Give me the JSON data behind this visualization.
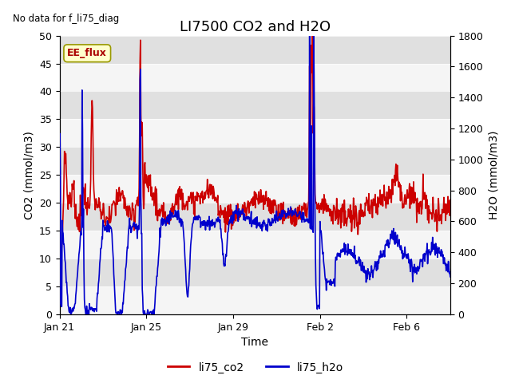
{
  "title": "LI7500 CO2 and H2O",
  "top_left_text": "No data for f_li75_diag",
  "legend_box_text": "EE_flux",
  "xlabel": "Time",
  "ylabel_left": "CO2 (mmol/m3)",
  "ylabel_right": "H2O (mmol/m3)",
  "ylim_left": [
    0,
    50
  ],
  "ylim_right": [
    0,
    1800
  ],
  "yticks_left": [
    0,
    5,
    10,
    15,
    20,
    25,
    30,
    35,
    40,
    45,
    50
  ],
  "yticks_right": [
    0,
    200,
    400,
    600,
    800,
    1000,
    1200,
    1400,
    1600,
    1800
  ],
  "color_co2": "#cc0000",
  "color_h2o": "#0000cc",
  "fig_bg_color": "#ffffff",
  "plot_bg_color": "#e8e8e8",
  "band_color_light": "#f5f5f5",
  "band_color_dark": "#e0e0e0",
  "legend_co2": "li75_co2",
  "legend_h2o": "li75_h2o",
  "title_fontsize": 13,
  "axis_label_fontsize": 10,
  "tick_fontsize": 9,
  "legend_fontsize": 10,
  "linewidth": 1.2
}
